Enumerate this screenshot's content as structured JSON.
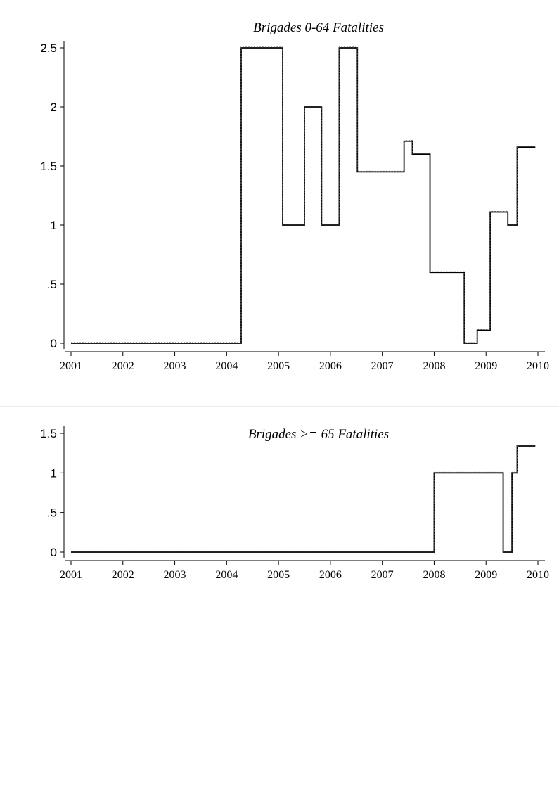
{
  "chart_data": [
    {
      "type": "line",
      "title": "Brigades 0-64 Fatalities",
      "xlabel": "",
      "ylabel": "",
      "xlim": [
        2001,
        2010
      ],
      "ylim": [
        0,
        2.5
      ],
      "x_ticks": [
        "2001",
        "2002",
        "2003",
        "2004",
        "2005",
        "2006",
        "2007",
        "2008",
        "2009",
        "2010"
      ],
      "y_ticks": [
        "0",
        ".5",
        "1",
        "1.5",
        "2",
        "2.5"
      ],
      "grid": false,
      "step": true,
      "series": [
        {
          "x": [
            2001,
            2004.28,
            2005.08,
            2005.5,
            2005.83,
            2006.17,
            2006.52,
            2007.42,
            2007.58,
            2007.92,
            2008.58,
            2008.83,
            2009.08,
            2009.42,
            2009.6,
            2009.95
          ],
          "y": [
            0,
            2.5,
            1,
            2,
            1,
            2.5,
            1.45,
            1.71,
            1.6,
            0.6,
            0,
            0.11,
            1.11,
            1,
            1.66,
            1.66
          ]
        }
      ]
    },
    {
      "type": "line",
      "title": "Brigades >= 65 Fatalities",
      "xlabel": "",
      "ylabel": "",
      "xlim": [
        2001,
        2010
      ],
      "ylim": [
        0,
        1.5
      ],
      "x_ticks": [
        "2001",
        "2002",
        "2003",
        "2004",
        "2005",
        "2006",
        "2007",
        "2008",
        "2009",
        "2010"
      ],
      "y_ticks": [
        "0",
        ".5",
        "1",
        "1.5"
      ],
      "grid": false,
      "step": true,
      "series": [
        {
          "x": [
            2001,
            2008.0,
            2009.33,
            2009.5,
            2009.6,
            2009.95
          ],
          "y": [
            0,
            1,
            0,
            1,
            1.34,
            1.34
          ]
        }
      ]
    }
  ]
}
